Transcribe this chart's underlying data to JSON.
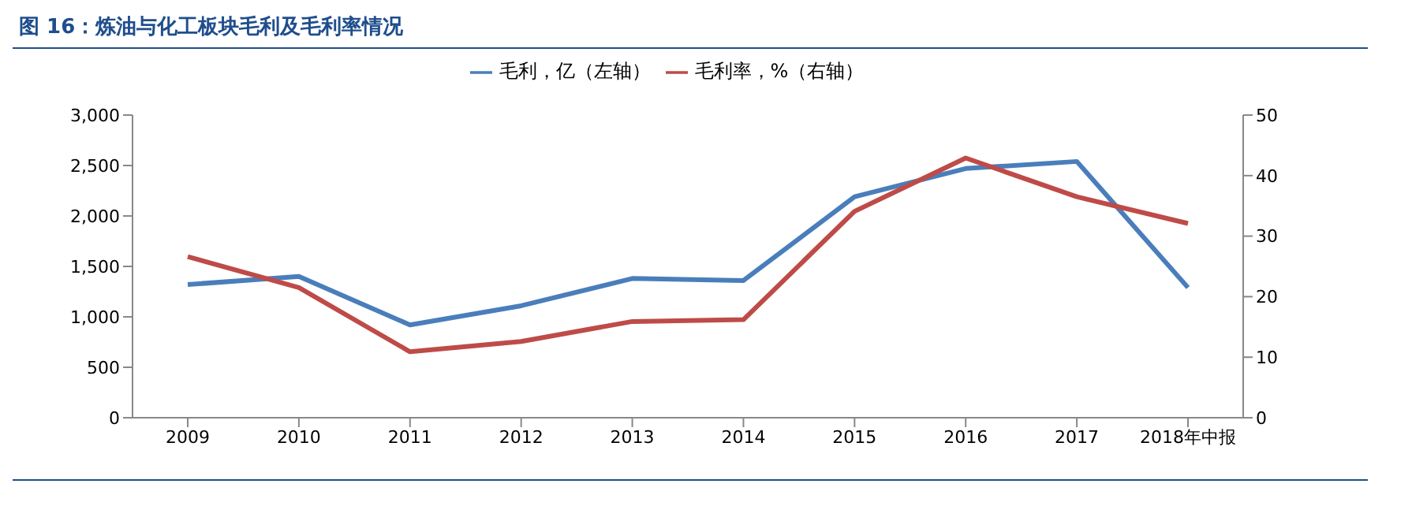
{
  "chart_data": {
    "type": "line",
    "title": "图 16：炼油与化工板块毛利及毛利率情况",
    "categories": [
      "2009",
      "2010",
      "2011",
      "2012",
      "2013",
      "2014",
      "2015",
      "2016",
      "2017",
      "2018年中报"
    ],
    "series": [
      {
        "name": "毛利，亿（左轴）",
        "color": "#4a7ebb",
        "values": [
          1320,
          1400,
          920,
          1110,
          1380,
          1360,
          2190,
          2470,
          2540,
          1290
        ]
      },
      {
        "name": "毛利率，%（右轴）",
        "color": "#be4b48",
        "axis": "y2",
        "values": [
          26.6,
          21.5,
          10.9,
          12.6,
          15.9,
          16.2,
          34.1,
          42.9,
          36.5,
          32.1
        ]
      }
    ],
    "ylim": [
      0,
      3000
    ],
    "yticks": [
      0,
      500,
      {
        "value": 1000,
        "label": "1,000"
      },
      {
        "value": 1500,
        "label": "1,500"
      },
      {
        "value": 2000,
        "label": "2,000"
      },
      {
        "value": 2500,
        "label": "2,500"
      },
      {
        "value": 3000,
        "label": "3,000"
      }
    ],
    "y2lim": [
      0,
      50
    ],
    "y2ticks": [
      0,
      10,
      20,
      30,
      40,
      50
    ],
    "legend": "top",
    "marker": "none",
    "line_style": "solid"
  }
}
